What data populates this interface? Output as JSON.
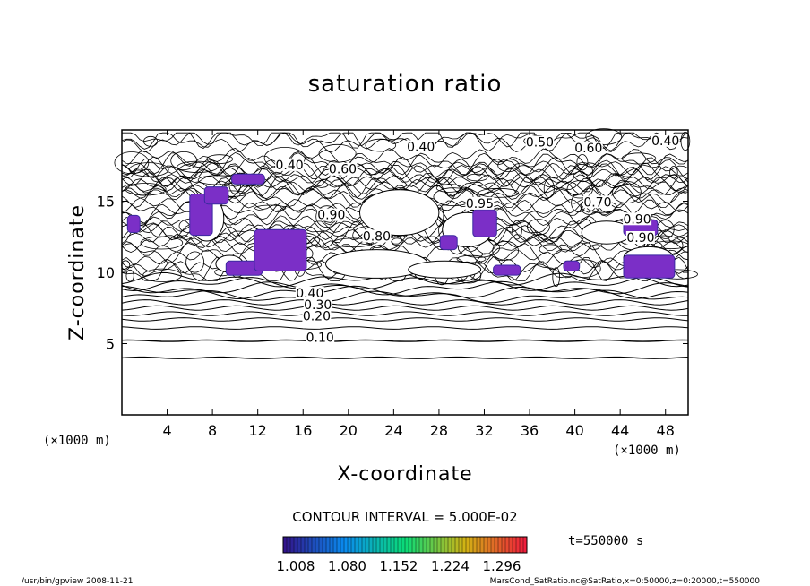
{
  "chart_data": {
    "type": "contour",
    "title": "saturation ratio",
    "xlabel": "X-coordinate",
    "ylabel": "Z-coordinate",
    "x_unit": "(×1000 m)",
    "z_unit": "(×1000 m)",
    "xlim": [
      0,
      50
    ],
    "ylim": [
      0,
      20
    ],
    "x_ticks": [
      4,
      8,
      12,
      16,
      20,
      24,
      28,
      32,
      36,
      40,
      44,
      48
    ],
    "y_ticks": [
      5,
      10,
      15
    ],
    "contour_interval_text": "CONTOUR INTERVAL = 5.000E-02",
    "time_text": "t=550000 s",
    "colorbar_ticks": [
      "1.008",
      "1.080",
      "1.152",
      "1.224",
      "1.296"
    ],
    "contour_labels": [
      {
        "text": "0.10",
        "x": 17.5,
        "z": 5.2
      },
      {
        "text": "0.20",
        "x": 17.2,
        "z": 6.7
      },
      {
        "text": "0.30",
        "x": 17.3,
        "z": 7.5
      },
      {
        "text": "0.40",
        "x": 16.6,
        "z": 8.3
      },
      {
        "text": "0.40",
        "x": 26.4,
        "z": 18.6
      },
      {
        "text": "0.40",
        "x": 14.8,
        "z": 17.3
      },
      {
        "text": "0.40",
        "x": 48.0,
        "z": 19.0
      },
      {
        "text": "0.50",
        "x": 36.9,
        "z": 18.9
      },
      {
        "text": "0.60",
        "x": 41.2,
        "z": 18.5
      },
      {
        "text": "0.60",
        "x": 19.5,
        "z": 17.0
      },
      {
        "text": "0.70",
        "x": 42.0,
        "z": 14.7
      },
      {
        "text": "0.90",
        "x": 18.5,
        "z": 13.8
      },
      {
        "text": "0.90",
        "x": 45.5,
        "z": 13.5
      },
      {
        "text": "0.80",
        "x": 22.5,
        "z": 12.3
      },
      {
        "text": "0.90",
        "x": 45.8,
        "z": 12.2
      },
      {
        "text": "0.95",
        "x": 31.6,
        "z": 14.6
      }
    ],
    "supersaturated_regions": [
      {
        "x": [
          0.5,
          1.6
        ],
        "z": [
          12.8,
          14.0
        ]
      },
      {
        "x": [
          6.0,
          8.0
        ],
        "z": [
          12.6,
          15.5
        ]
      },
      {
        "x": [
          7.3,
          9.4
        ],
        "z": [
          14.8,
          16.0
        ]
      },
      {
        "x": [
          9.7,
          12.6
        ],
        "z": [
          16.2,
          16.9
        ]
      },
      {
        "x": [
          9.2,
          12.4
        ],
        "z": [
          9.8,
          10.8
        ]
      },
      {
        "x": [
          11.7,
          16.3
        ],
        "z": [
          10.1,
          13.0
        ]
      },
      {
        "x": [
          28.1,
          29.6
        ],
        "z": [
          11.6,
          12.6
        ]
      },
      {
        "x": [
          31.0,
          33.1
        ],
        "z": [
          12.5,
          14.4
        ]
      },
      {
        "x": [
          32.8,
          35.2
        ],
        "z": [
          9.8,
          10.5
        ]
      },
      {
        "x": [
          39.0,
          40.4
        ],
        "z": [
          10.1,
          10.8
        ]
      },
      {
        "x": [
          44.3,
          47.3
        ],
        "z": [
          12.6,
          13.7
        ]
      },
      {
        "x": [
          44.3,
          48.8
        ],
        "z": [
          9.6,
          11.2
        ]
      }
    ]
  },
  "footer": {
    "left": "/usr/bin/gpview   2008-11-21",
    "right": "MarsCond_SatRatio.nc@SatRatio,x=0:50000,z=0:20000,t=550000"
  }
}
